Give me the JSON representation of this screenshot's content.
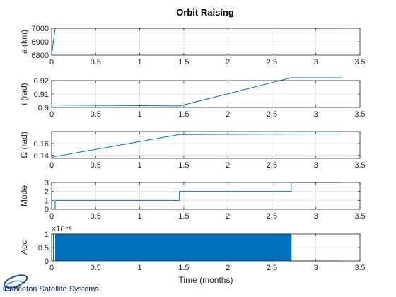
{
  "figure": {
    "title": "Orbit Raising",
    "xlabel": "Time (months)",
    "footer_logo_text": "Princeton Satellite Systems"
  },
  "colors": {
    "line": "#0072BD",
    "axis": "#262626",
    "grid": "#dfdfdf"
  },
  "chart_data": [
    {
      "type": "line",
      "ylabel": "a (km)",
      "xlim": [
        0,
        3.5
      ],
      "ylim": [
        6800,
        7000
      ],
      "xticks": [
        "0",
        "0.5",
        "1",
        "1.5",
        "2",
        "2.5",
        "3",
        "3.5"
      ],
      "yticks": [
        6800,
        6900,
        7000
      ],
      "ytick_labels": [
        "6800",
        "6900",
        "7000"
      ],
      "series": [
        {
          "x": [
            0,
            0.04,
            3.3
          ],
          "y": [
            6800,
            7000,
            7000
          ]
        }
      ]
    },
    {
      "type": "line",
      "ylabel": "i (rad)",
      "xlim": [
        0,
        3.5
      ],
      "ylim": [
        0.9,
        0.92
      ],
      "xticks": [
        "0",
        "0.5",
        "1",
        "1.5",
        "2",
        "2.5",
        "3",
        "3.5"
      ],
      "yticks": [
        0.9,
        0.91,
        0.92
      ],
      "ytick_labels": [
        "0.9",
        "0.91",
        "0.92"
      ],
      "series": [
        {
          "x": [
            0,
            0.05,
            1.45,
            2.72,
            3.3
          ],
          "y": [
            0.9018,
            0.9018,
            0.9011,
            0.9221,
            0.9221
          ]
        }
      ]
    },
    {
      "type": "line",
      "ylabel": "Ω (rad)",
      "xlim": [
        0,
        3.5
      ],
      "ylim": [
        0.135,
        0.18
      ],
      "xticks": [
        "0",
        "0.5",
        "1",
        "1.5",
        "2",
        "2.5",
        "3",
        "3.5"
      ],
      "yticks": [
        0.14,
        0.16
      ],
      "ytick_labels": [
        "0.14",
        "0.16"
      ],
      "series": [
        {
          "x": [
            0,
            1.45,
            3.3
          ],
          "y": [
            0.137,
            0.175,
            0.176
          ]
        }
      ]
    },
    {
      "type": "line",
      "ylabel": "Mode",
      "xlim": [
        0,
        3.5
      ],
      "ylim": [
        0,
        3
      ],
      "xticks": [
        "0",
        "0.5",
        "1",
        "1.5",
        "2",
        "2.5",
        "3",
        "3.5"
      ],
      "yticks": [
        0,
        1,
        2,
        3
      ],
      "ytick_labels": [
        "0",
        "1",
        "2",
        "3"
      ],
      "series": [
        {
          "x": [
            0,
            0.04,
            0.04,
            1.45,
            1.45,
            2.72,
            2.72,
            3.3
          ],
          "y": [
            0,
            0,
            1,
            1,
            2,
            2,
            3,
            3
          ]
        }
      ]
    },
    {
      "type": "area",
      "ylabel": "Acc",
      "exponent_label": "×10⁻⁶",
      "xlim": [
        0,
        3.5
      ],
      "ylim": [
        0,
        1e-06
      ],
      "xticks": [
        "0",
        "0.5",
        "1",
        "1.5",
        "2",
        "2.5",
        "3",
        "3.5"
      ],
      "yticks": [
        0,
        5e-07,
        1e-06
      ],
      "ytick_labels": [
        "0",
        "0.5",
        "1"
      ],
      "filled_band": {
        "x_start": 0.04,
        "x_end": 2.72,
        "y_low": 0,
        "y_high": 1e-06
      },
      "series": [
        {
          "x": [
            0,
            0.02,
            0.02,
            0.04,
            2.72,
            2.72,
            3.3
          ],
          "y": [
            0,
            0,
            1e-06,
            1e-06,
            1e-06,
            0,
            0
          ]
        }
      ]
    }
  ]
}
